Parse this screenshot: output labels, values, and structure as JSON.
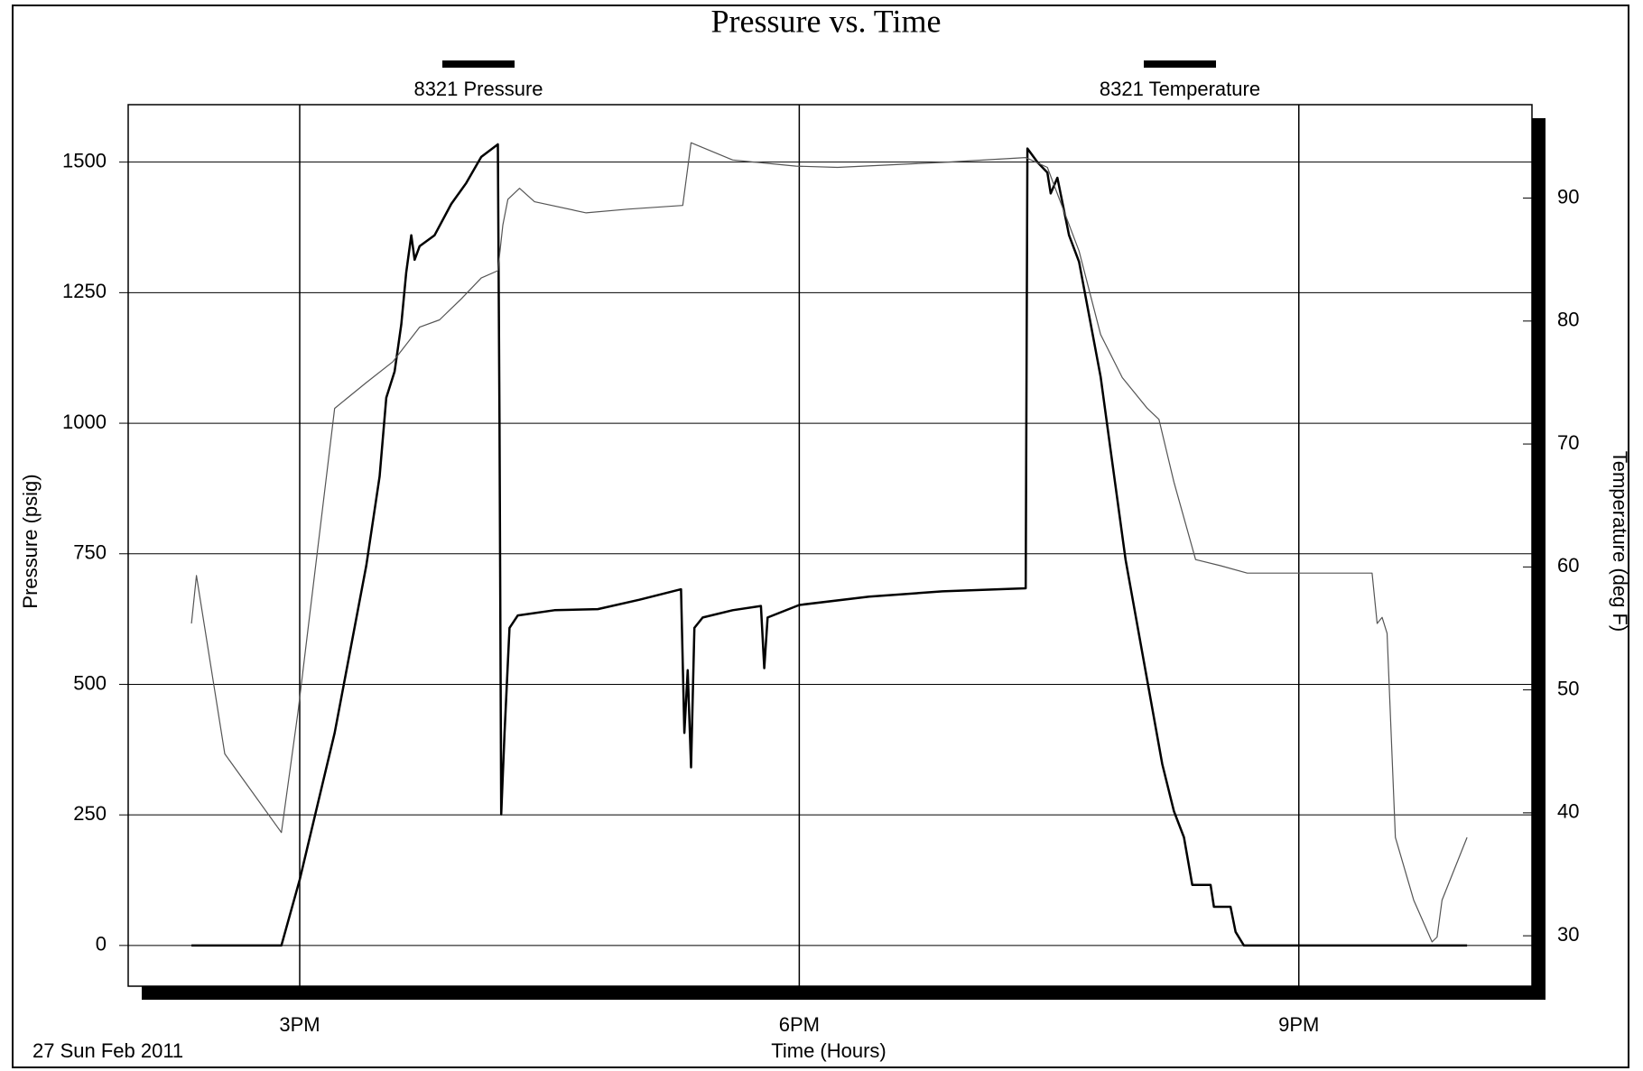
{
  "chart_data": {
    "type": "line",
    "title": "Pressure vs. Time",
    "x_label": "Time (Hours)",
    "y_label": "Pressure (psig)",
    "y2_label": "Temperature (deg F)",
    "annotation": "27 Sun Feb 2011",
    "legend": "top",
    "grid": true,
    "xlim": [
      13.97,
      22.4
    ],
    "xticks": [
      {
        "value": 15,
        "label": "3PM"
      },
      {
        "value": 18,
        "label": "6PM"
      },
      {
        "value": 21,
        "label": "9PM"
      }
    ],
    "ylim": [
      -78,
      1610
    ],
    "yticks": [
      0,
      250,
      500,
      750,
      1000,
      1250,
      1500
    ],
    "y2lim": [
      25.9,
      97.6
    ],
    "y2ticks": [
      30,
      40,
      50,
      60,
      70,
      80,
      90
    ],
    "series": [
      {
        "name": "8321 Pressure",
        "color": "#000000",
        "line_width": 2.5,
        "x": [
          14.35,
          14.89,
          15.0,
          15.21,
          15.4,
          15.48,
          15.52,
          15.57,
          15.61,
          15.64,
          15.67,
          15.69,
          15.72,
          15.81,
          15.91,
          16.0,
          16.09,
          16.19,
          16.2,
          16.21,
          16.23,
          16.26,
          16.31,
          16.53,
          16.79,
          17.04,
          17.29,
          17.31,
          17.33,
          17.35,
          17.37,
          17.42,
          17.6,
          17.77,
          17.79,
          17.81,
          18.0,
          18.42,
          18.86,
          19.36,
          19.37,
          19.43,
          19.49,
          19.51,
          19.55,
          19.62,
          19.68,
          19.81,
          19.87,
          19.96,
          20.09,
          20.18,
          20.25,
          20.31,
          20.36,
          20.47,
          20.49,
          20.59,
          20.62,
          20.67,
          22.01
        ],
        "values": [
          0,
          0,
          126,
          407,
          728,
          898,
          1049,
          1099,
          1189,
          1289,
          1360,
          1313,
          1339,
          1360,
          1420,
          1460,
          1510,
          1534,
          1009,
          251,
          407,
          608,
          632,
          642,
          644,
          662,
          682,
          407,
          527,
          341,
          608,
          628,
          642,
          650,
          531,
          628,
          652,
          668,
          678,
          684,
          1526,
          1500,
          1480,
          1440,
          1470,
          1360,
          1309,
          1089,
          948,
          738,
          507,
          347,
          257,
          207,
          116,
          116,
          74,
          74,
          26,
          0,
          0
        ]
      },
      {
        "name": "8321 Temperature",
        "color": "#555555",
        "line_width": 1.2,
        "axis": "y2",
        "x": [
          14.35,
          14.38,
          14.55,
          14.89,
          14.99,
          15.21,
          15.4,
          15.56,
          15.72,
          15.84,
          15.97,
          16.09,
          16.19,
          16.22,
          16.25,
          16.32,
          16.41,
          16.72,
          16.97,
          17.3,
          17.35,
          17.6,
          17.98,
          18.23,
          18.86,
          19.36,
          19.49,
          19.68,
          19.81,
          19.94,
          20.09,
          20.16,
          20.25,
          20.38,
          20.53,
          20.69,
          21.44,
          21.47,
          21.5,
          21.53,
          21.58,
          21.69,
          21.8,
          21.83,
          21.86,
          22.01
        ],
        "values": [
          55.4,
          59.3,
          44.8,
          38.4,
          48.2,
          72.9,
          75.0,
          76.7,
          79.5,
          80.1,
          81.8,
          83.5,
          84.1,
          87.8,
          89.9,
          90.8,
          89.7,
          88.8,
          89.1,
          89.4,
          94.5,
          93.1,
          92.6,
          92.5,
          92.9,
          93.3,
          92.5,
          85.7,
          78.9,
          75.4,
          72.9,
          72.0,
          66.9,
          60.6,
          60.1,
          59.5,
          59.5,
          55.4,
          55.9,
          54.6,
          38.0,
          32.9,
          29.5,
          29.9,
          32.9,
          38.0
        ]
      }
    ]
  }
}
